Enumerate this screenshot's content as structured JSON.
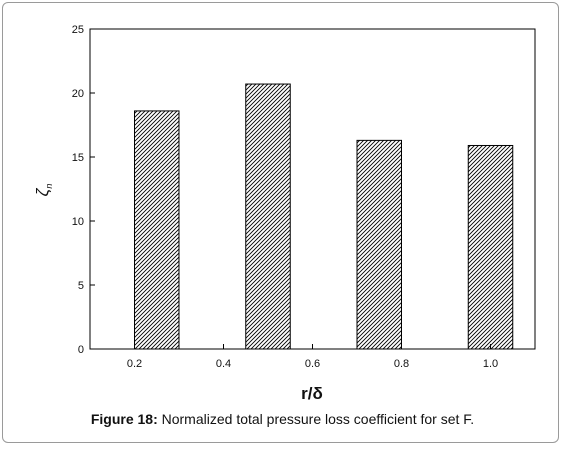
{
  "caption": {
    "label": "Figure 18:",
    "text": " Normalized total pressure loss coefficient for set F."
  },
  "chart_data": {
    "type": "bar",
    "title": "",
    "xlabel": "r/δ",
    "ylabel": "ζ",
    "ylabel_sub": "n",
    "xlim": [
      0.1,
      1.1
    ],
    "ylim": [
      0,
      25
    ],
    "xticks": [
      "0.2",
      "0.4",
      "0.6",
      "0.8",
      "1.0"
    ],
    "xtick_values": [
      0.2,
      0.4,
      0.6,
      0.8,
      1.0
    ],
    "yticks": [
      0,
      5,
      10,
      15,
      20,
      25
    ],
    "categories": [
      "0.25",
      "0.5",
      "0.75",
      "1.0"
    ],
    "x": [
      0.25,
      0.5,
      0.75,
      1.0
    ],
    "bar_width": 0.1,
    "values": [
      18.6,
      20.7,
      16.3,
      15.9
    ],
    "bar_fill": "diagonal-hatch",
    "grid": false,
    "legend": "none"
  }
}
